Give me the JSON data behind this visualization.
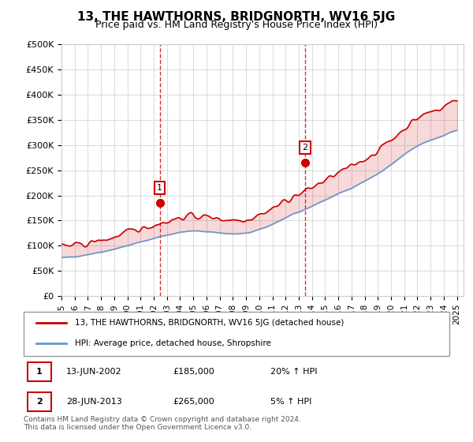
{
  "title": "13, THE HAWTHORNS, BRIDGNORTH, WV16 5JG",
  "subtitle": "Price paid vs. HM Land Registry's House Price Index (HPI)",
  "ylabel": "",
  "ylim": [
    0,
    500000
  ],
  "yticks": [
    0,
    50000,
    100000,
    150000,
    200000,
    250000,
    300000,
    350000,
    400000,
    450000,
    500000
  ],
  "ytick_labels": [
    "£0",
    "£50K",
    "£100K",
    "£150K",
    "£200K",
    "£250K",
    "£300K",
    "£350K",
    "£400K",
    "£450K",
    "£500K"
  ],
  "sale1_date": 2002.45,
  "sale1_price": 185000,
  "sale1_label": "1",
  "sale2_date": 2013.49,
  "sale2_price": 265000,
  "sale2_label": "2",
  "house_color": "#cc0000",
  "hpi_color": "#6699cc",
  "background_color": "#ffffff",
  "grid_color": "#dddddd",
  "legend1_text": "13, THE HAWTHORNS, BRIDGNORTH, WV16 5JG (detached house)",
  "legend2_text": "HPI: Average price, detached house, Shropshire",
  "table_row1": [
    "1",
    "13-JUN-2002",
    "£185,000",
    "20% ↑ HPI"
  ],
  "table_row2": [
    "2",
    "28-JUN-2013",
    "£265,000",
    "5% ↑ HPI"
  ],
  "footnote": "Contains HM Land Registry data © Crown copyright and database right 2024.\nThis data is licensed under the Open Government Licence v3.0.",
  "title_fontsize": 11,
  "subtitle_fontsize": 9,
  "tick_fontsize": 8
}
